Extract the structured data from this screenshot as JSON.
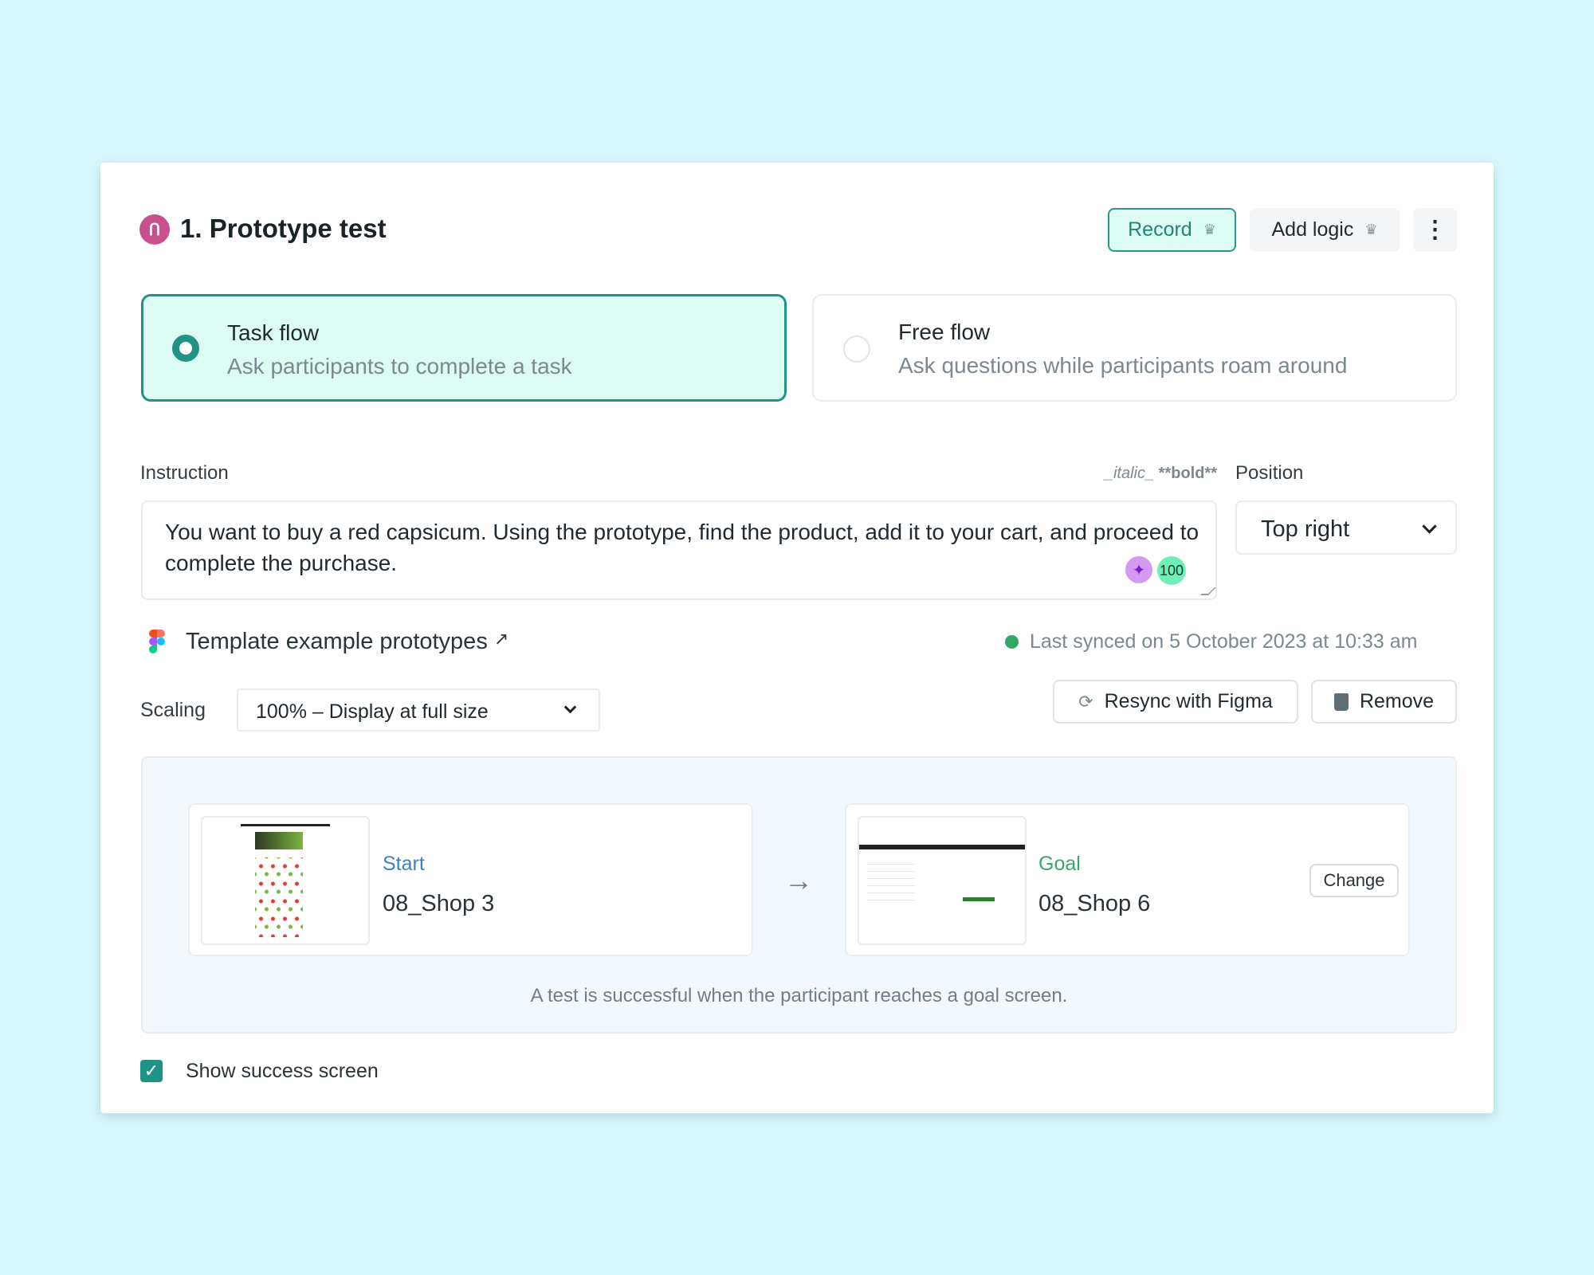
{
  "header": {
    "title": "1. Prototype test",
    "icon": "prototype-icon",
    "record_label": "Record",
    "add_logic_label": "Add logic",
    "more_icon": "kebab-icon"
  },
  "flow_options": [
    {
      "title": "Task flow",
      "subtitle": "Ask participants to complete a task",
      "selected": true
    },
    {
      "title": "Free flow",
      "subtitle": "Ask questions while participants roam around",
      "selected": false
    }
  ],
  "instruction": {
    "label": "Instruction",
    "italic_hint": "_italic_",
    "bold_hint": "**bold**",
    "value": "You want to buy a red capsicum. Using the prototype, find the product, add it to your cart, and proceed to complete the purchase.",
    "count_badge": "100"
  },
  "position": {
    "label": "Position",
    "value": "Top right"
  },
  "prototype": {
    "name": "Template example prototypes",
    "sync_status": "Last synced on 5 October 2023 at 10:33 am",
    "resync_label": "Resync with Figma",
    "remove_label": "Remove"
  },
  "scaling": {
    "label": "Scaling",
    "value": "100% – Display at full size"
  },
  "screens": {
    "start": {
      "label": "Start",
      "name": "08_Shop 3"
    },
    "goal": {
      "label": "Goal",
      "name": "08_Shop 6",
      "change_label": "Change"
    },
    "footer": "A test is successful when the participant reaches a goal screen."
  },
  "success_screen": {
    "label": "Show success screen",
    "checked": true
  },
  "colors": {
    "accent": "#1f9486",
    "start": "#3b82c4",
    "goal": "#3aa56b",
    "background": "#d8f7fd"
  }
}
